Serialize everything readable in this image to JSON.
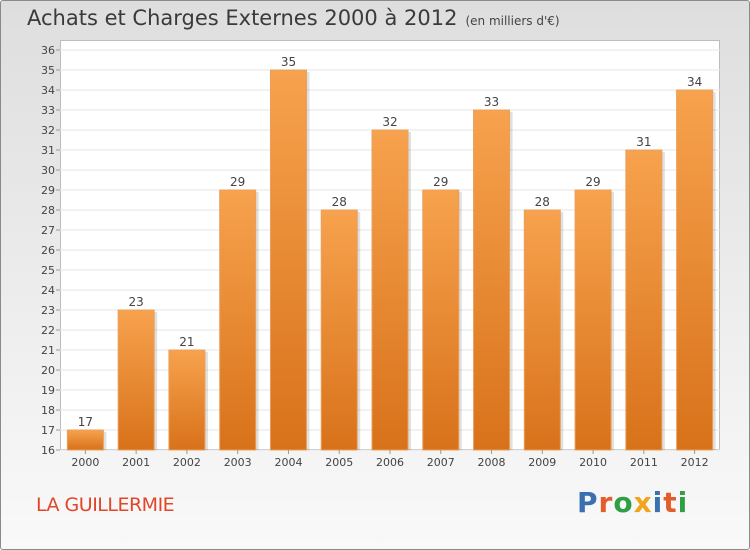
{
  "header": {
    "title": "Achats et Charges Externes 2000 à 2012",
    "unit": "(en milliers d'€)"
  },
  "footer": {
    "place": "LA GUILLERMIE",
    "logo": "Proxiti"
  },
  "colors": {
    "bar_light": "#f7a24e",
    "bar_dark": "#d8721a",
    "bar_edge": "#e9a05c",
    "place": "#e2462a",
    "logo_p": "#3a6fb0",
    "logo_r": "#e35d2b",
    "logo_o": "#2f9e44",
    "logo_x": "#f2a51a",
    "logo_i": "#3a6fb0",
    "logo_t": "#e35d2b",
    "logo_i2": "#2f9e44"
  },
  "chart_data": {
    "type": "bar",
    "categories": [
      "2000",
      "2001",
      "2002",
      "2003",
      "2004",
      "2005",
      "2006",
      "2007",
      "2008",
      "2009",
      "2010",
      "2011",
      "2012"
    ],
    "values": [
      17,
      23,
      21,
      29,
      35,
      28,
      32,
      29,
      33,
      28,
      29,
      31,
      34
    ],
    "ylim": [
      16,
      36
    ],
    "yticks": [
      16,
      17,
      18,
      19,
      20,
      21,
      22,
      23,
      24,
      25,
      26,
      27,
      28,
      29,
      30,
      31,
      32,
      33,
      34,
      35,
      36
    ],
    "grid": true
  }
}
